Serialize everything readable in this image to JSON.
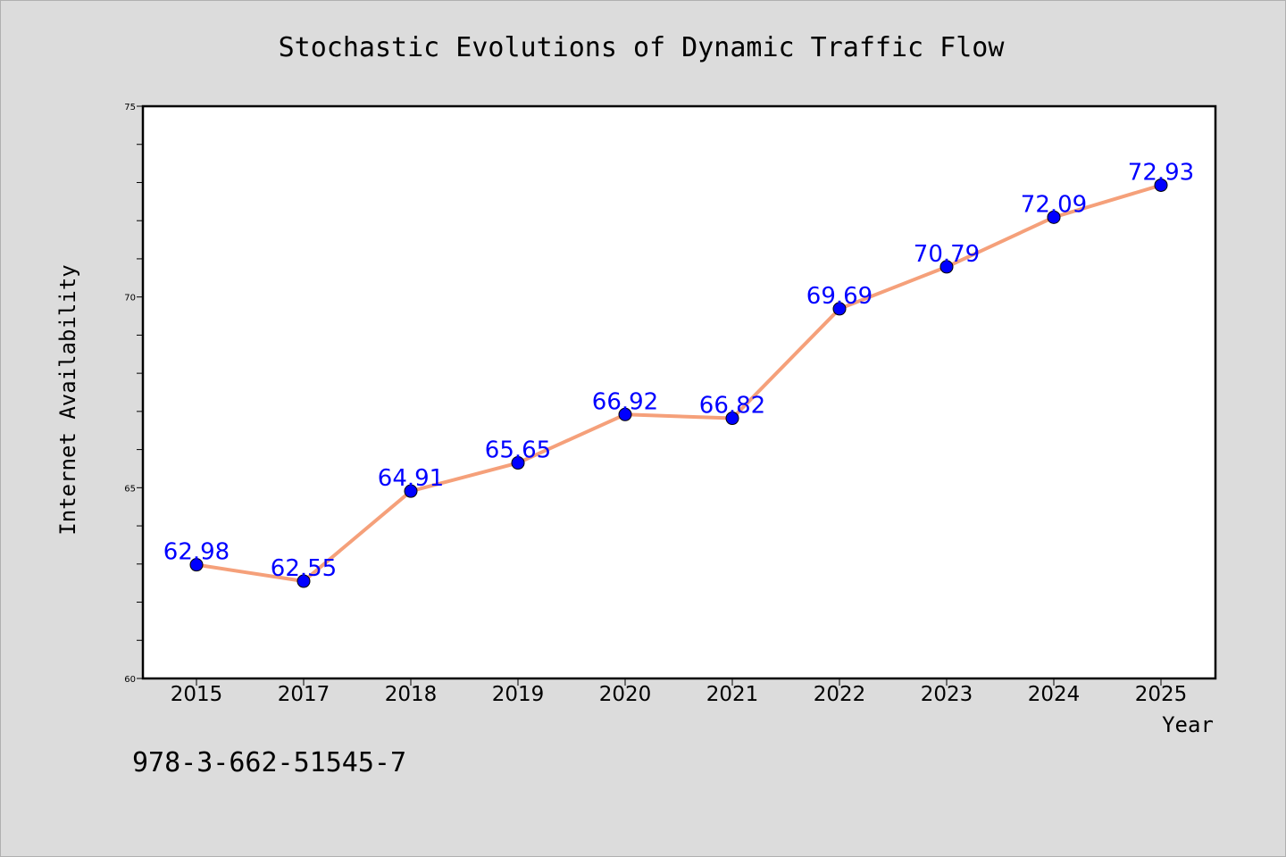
{
  "chart_data": {
    "type": "line",
    "title": "Stochastic Evolutions of Dynamic Traffic Flow",
    "xlabel": "Year",
    "ylabel": "Internet Availability",
    "categories": [
      "2015",
      "2017",
      "2018",
      "2019",
      "2020",
      "2021",
      "2022",
      "2023",
      "2024",
      "2025"
    ],
    "series": [
      {
        "values": [
          62.98,
          62.55,
          64.91,
          65.65,
          66.92,
          66.82,
          69.69,
          70.79,
          72.09,
          72.93
        ],
        "data_labels": [
          "62.98",
          "62.55",
          "64.91",
          "65.65",
          "66.92",
          "66.82",
          "69.69",
          "70.79",
          "72.09",
          "72.93"
        ],
        "line_color": "#f5a07a",
        "marker_color": "#0000ff",
        "label_color": "#0000ff"
      }
    ],
    "ylim": [
      60,
      75
    ],
    "y_ticks": [
      "60",
      "65",
      "70",
      "75"
    ],
    "y_minor_step": 1,
    "grid": false,
    "legend": "none",
    "annotation": "978-3-662-51545-7",
    "colors": {
      "background": "#dcdcdc",
      "plot_background": "#ffffff",
      "axes": "#000000"
    }
  }
}
